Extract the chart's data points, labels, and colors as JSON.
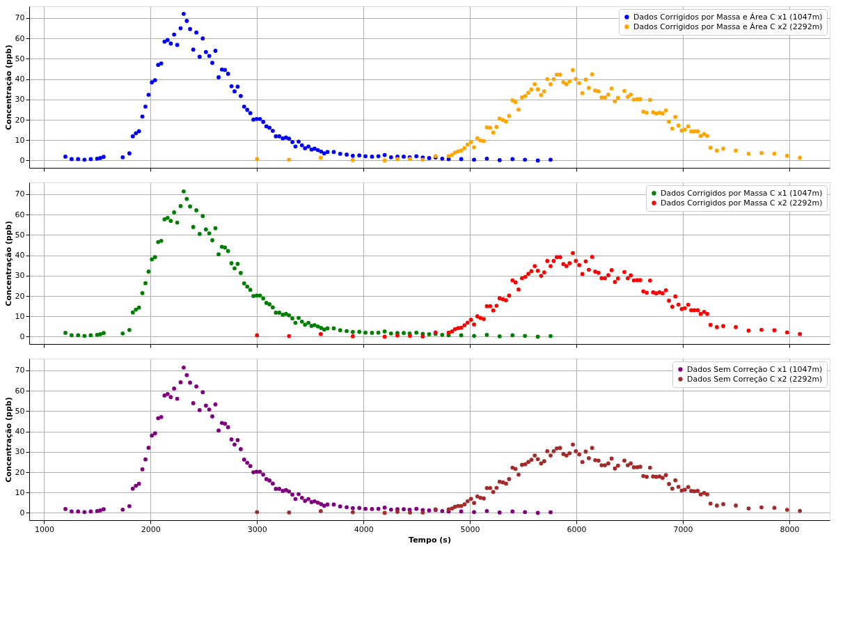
{
  "chart_data": [
    {
      "type": "scatter",
      "ylabel": "Concentração (ppb)",
      "xlim": [
        860,
        8380
      ],
      "ylim": [
        -3.6,
        75.8
      ],
      "xticks": [
        1000,
        2000,
        3000,
        4000,
        5000,
        6000,
        7000,
        8000
      ],
      "yticks": [
        0,
        10,
        20,
        30,
        40,
        50,
        60,
        70
      ],
      "tick_labels": "y",
      "grid": true,
      "legend": "top right",
      "marker": "circle",
      "series": [
        {
          "name": "Dados Corrigidos por Massa e Área C x1 (1047m)",
          "color": "#0000ff",
          "x": [
            1200,
            1258,
            1319,
            1379,
            1438,
            1498,
            1527,
            1559,
            1738,
            1801,
            1833,
            1862,
            1891,
            1923,
            1952,
            1981,
            2012,
            2042,
            2071,
            2100,
            2131,
            2160,
            2190,
            2221,
            2250,
            2282,
            2311,
            2340,
            2371,
            2401,
            2430,
            2461,
            2490,
            2520,
            2551,
            2580,
            2609,
            2639,
            2670,
            2699,
            2728,
            2760,
            2789,
            2818,
            2847,
            2879,
            2908,
            2937,
            2966,
            2996,
            3027,
            3058,
            3088,
            3117,
            3148,
            3177,
            3209,
            3242,
            3272,
            3301,
            3332,
            3361,
            3391,
            3422,
            3451,
            3483,
            3512,
            3541,
            3572,
            3602,
            3631,
            3662,
            3721,
            3781,
            3842,
            3900,
            3961,
            4019,
            4080,
            4140,
            4199,
            4259,
            4319,
            4378,
            4434,
            4497,
            4557,
            4617,
            4677,
            4740,
            4800,
            4918,
            5039,
            5159,
            5279,
            5400,
            5517,
            5638,
            5758
          ],
          "values": [
            1.9,
            0.7,
            0.7,
            0.4,
            0.7,
            0.9,
            1.2,
            1.8,
            1.6,
            3.5,
            11.9,
            13.4,
            14.4,
            21.6,
            26.5,
            32.3,
            38.4,
            39.5,
            47.0,
            47.7,
            58.4,
            59.2,
            57.5,
            61.9,
            56.8,
            65.0,
            72.1,
            68.6,
            64.6,
            54.5,
            62.9,
            51.0,
            60.0,
            53.3,
            51.4,
            48.0,
            53.9,
            40.9,
            44.7,
            44.5,
            42.6,
            36.5,
            34.0,
            36.3,
            31.7,
            26.5,
            24.9,
            23.3,
            20.1,
            20.4,
            20.4,
            19.0,
            16.8,
            16.1,
            14.6,
            11.9,
            11.9,
            10.9,
            11.3,
            10.7,
            9.1,
            6.9,
            9.3,
            7.5,
            6.0,
            6.9,
            5.4,
            5.8,
            5.1,
            4.4,
            3.5,
            4.2,
            4.2,
            3.3,
            2.9,
            2.3,
            2.5,
            2.1,
            1.9,
            2.1,
            2.7,
            1.6,
            1.9,
            1.9,
            1.6,
            2.1,
            1.5,
            1.2,
            1.5,
            0.9,
            0.7,
            0.7,
            0.4,
            0.9,
            0.2,
            0.7,
            0.4,
            0.0,
            0.4
          ]
        },
        {
          "name": "Dados Corrigidos por Massa e Área C x2 (2292m)",
          "color": "#ffa500",
          "x": [
            3000,
            3301,
            3599,
            3900,
            4199,
            4319,
            4437,
            4557,
            4677,
            4800,
            4832,
            4860,
            4889,
            4918,
            4949,
            4978,
            5010,
            5039,
            5070,
            5099,
            5130,
            5159,
            5190,
            5219,
            5250,
            5279,
            5310,
            5339,
            5368,
            5400,
            5428,
            5457,
            5489,
            5520,
            5549,
            5578,
            5609,
            5638,
            5669,
            5698,
            5727,
            5758,
            5787,
            5816,
            5847,
            5878,
            5907,
            5936,
            5967,
            5995,
            6027,
            6057,
            6088,
            6117,
            6148,
            6177,
            6208,
            6237,
            6268,
            6300,
            6331,
            6362,
            6391,
            6451,
            6483,
            6511,
            6540,
            6572,
            6600,
            6692,
            6629,
            6661,
            6721,
            6750,
            6781,
            6810,
            6841,
            6870,
            6901,
            6930,
            6959,
            6990,
            7019,
            7051,
            7079,
            7108,
            7140,
            7168,
            7200,
            7229,
            7260,
            7320,
            7380,
            7498,
            7618,
            7739,
            7860,
            7980,
            8100
          ],
          "values": [
            0.7,
            0.4,
            1.4,
            0.2,
            0.0,
            0.7,
            0.8,
            0.4,
            2.2,
            2.2,
            2.8,
            3.9,
            4.5,
            4.9,
            6.1,
            7.8,
            9.1,
            6.5,
            11.0,
            9.8,
            9.6,
            16.3,
            16.1,
            13.8,
            16.5,
            20.6,
            19.9,
            19.2,
            21.9,
            29.6,
            28.7,
            25.0,
            31.0,
            31.7,
            33.3,
            34.9,
            37.5,
            35.0,
            32.2,
            34.0,
            40.0,
            37.5,
            40.0,
            42.2,
            42.2,
            38.5,
            37.5,
            38.9,
            44.4,
            40.0,
            38.0,
            33.1,
            39.8,
            35.7,
            42.4,
            34.4,
            34.0,
            31.0,
            31.0,
            32.4,
            35.4,
            29.1,
            30.8,
            34.2,
            31.3,
            32.4,
            29.9,
            30.1,
            30.1,
            29.8,
            24.0,
            23.5,
            23.7,
            23.1,
            23.5,
            23.1,
            24.6,
            19.1,
            15.7,
            21.4,
            17.2,
            14.7,
            15.2,
            16.8,
            14.3,
            14.3,
            14.3,
            12.1,
            13.0,
            12.1,
            6.3,
            4.9,
            5.8,
            4.9,
            3.3,
            3.7,
            3.4,
            2.3,
            1.4
          ]
        }
      ]
    },
    {
      "type": "scatter",
      "ylabel": "Concentração (ppb)",
      "xlim": [
        860,
        8380
      ],
      "ylim": [
        -3.6,
        75.8
      ],
      "xticks": [
        1000,
        2000,
        3000,
        4000,
        5000,
        6000,
        7000,
        8000
      ],
      "yticks": [
        0,
        10,
        20,
        30,
        40,
        50,
        60,
        70
      ],
      "tick_labels": "y",
      "grid": true,
      "legend": "top right",
      "marker": "circle",
      "series": [
        {
          "name": "Dados Corrigidos por Massa C x1 (1047m)",
          "color": "#008000",
          "x": [
            1200,
            1258,
            1319,
            1379,
            1438,
            1498,
            1527,
            1559,
            1738,
            1801,
            1833,
            1862,
            1891,
            1923,
            1952,
            1981,
            2012,
            2042,
            2071,
            2100,
            2131,
            2160,
            2190,
            2221,
            2250,
            2282,
            2311,
            2340,
            2371,
            2401,
            2430,
            2461,
            2490,
            2520,
            2551,
            2580,
            2609,
            2639,
            2670,
            2699,
            2728,
            2760,
            2789,
            2818,
            2847,
            2879,
            2908,
            2937,
            2966,
            2996,
            3027,
            3058,
            3088,
            3117,
            3148,
            3177,
            3209,
            3242,
            3272,
            3301,
            3332,
            3361,
            3391,
            3422,
            3451,
            3483,
            3512,
            3541,
            3572,
            3602,
            3631,
            3662,
            3721,
            3781,
            3842,
            3900,
            3961,
            4019,
            4080,
            4140,
            4199,
            4259,
            4319,
            4378,
            4434,
            4497,
            4557,
            4617,
            4677,
            4740,
            4800,
            4918,
            5039,
            5159,
            5279,
            5400,
            5517,
            5638,
            5758
          ],
          "values": [
            1.9,
            0.7,
            0.7,
            0.4,
            0.7,
            0.9,
            1.2,
            1.8,
            1.6,
            3.3,
            11.9,
            13.3,
            14.3,
            21.4,
            26.3,
            32.0,
            38.0,
            39.1,
            46.5,
            47.1,
            57.7,
            58.4,
            56.9,
            61.1,
            56.1,
            64.2,
            71.4,
            67.7,
            64.0,
            53.9,
            62.1,
            50.5,
            59.3,
            52.7,
            50.8,
            47.4,
            53.3,
            40.5,
            44.2,
            43.8,
            42.1,
            36.1,
            33.6,
            35.8,
            31.3,
            26.2,
            24.6,
            23.0,
            20.0,
            20.2,
            20.2,
            18.8,
            16.6,
            15.9,
            14.4,
            11.8,
            11.8,
            10.8,
            11.2,
            10.5,
            9.0,
            6.8,
            9.2,
            7.4,
            5.9,
            6.8,
            5.3,
            5.7,
            5.0,
            4.3,
            3.5,
            4.1,
            4.1,
            3.2,
            2.8,
            2.3,
            2.4,
            2.0,
            1.9,
            2.0,
            2.6,
            1.6,
            1.8,
            1.8,
            1.6,
            2.0,
            1.4,
            1.2,
            1.4,
            0.9,
            0.7,
            0.7,
            0.4,
            0.9,
            0.2,
            0.7,
            0.4,
            0.0,
            0.3
          ]
        },
        {
          "name": "Dados Corrigidos por Massa C x2 (2292m)",
          "color": "#ff0000",
          "x": [
            3000,
            3301,
            3599,
            3900,
            4199,
            4319,
            4437,
            4557,
            4677,
            4800,
            4832,
            4860,
            4889,
            4918,
            4949,
            4978,
            5010,
            5039,
            5070,
            5099,
            5130,
            5159,
            5190,
            5219,
            5250,
            5279,
            5310,
            5339,
            5368,
            5400,
            5428,
            5457,
            5489,
            5520,
            5549,
            5578,
            5609,
            5638,
            5669,
            5698,
            5727,
            5758,
            5787,
            5816,
            5847,
            5878,
            5907,
            5936,
            5967,
            5995,
            6027,
            6057,
            6088,
            6117,
            6148,
            6177,
            6208,
            6237,
            6268,
            6300,
            6331,
            6362,
            6391,
            6451,
            6483,
            6511,
            6540,
            6572,
            6600,
            6692,
            6629,
            6661,
            6721,
            6750,
            6781,
            6810,
            6841,
            6870,
            6901,
            6930,
            6959,
            6990,
            7019,
            7051,
            7079,
            7108,
            7140,
            7168,
            7200,
            7229,
            7260,
            7320,
            7380,
            7498,
            7618,
            7739,
            7860,
            7980,
            8100
          ],
          "values": [
            0.7,
            0.3,
            1.3,
            0.2,
            0.0,
            0.6,
            0.4,
            0.1,
            2.1,
            2.0,
            2.6,
            3.7,
            4.2,
            4.4,
            5.6,
            6.9,
            8.3,
            6.0,
            10.0,
            9.2,
            8.7,
            15.0,
            15.0,
            12.9,
            15.2,
            18.9,
            18.4,
            17.9,
            20.2,
            27.7,
            26.7,
            23.2,
            28.7,
            29.4,
            30.9,
            32.2,
            34.7,
            32.4,
            29.9,
            31.6,
            37.2,
            34.7,
            37.2,
            39.1,
            39.1,
            35.7,
            34.7,
            36.1,
            41.1,
            37.2,
            35.2,
            30.8,
            37.0,
            32.9,
            39.2,
            32.0,
            31.4,
            28.7,
            28.7,
            30.2,
            32.7,
            26.9,
            28.6,
            31.8,
            28.7,
            30.1,
            27.7,
            27.8,
            27.8,
            27.6,
            22.3,
            21.6,
            21.8,
            21.3,
            21.8,
            21.3,
            22.8,
            17.7,
            14.7,
            19.8,
            15.8,
            13.6,
            14.0,
            15.7,
            13.0,
            13.0,
            13.0,
            11.2,
            12.2,
            11.2,
            5.8,
            4.7,
            5.2,
            4.7,
            3.0,
            3.4,
            3.2,
            2.1,
            1.3
          ]
        }
      ]
    },
    {
      "type": "scatter",
      "xlabel": "Tempo (s)",
      "ylabel": "Concentração (ppb)",
      "xlim": [
        860,
        8380
      ],
      "ylim": [
        -3.6,
        75.8
      ],
      "xticks": [
        1000,
        2000,
        3000,
        4000,
        5000,
        6000,
        7000,
        8000
      ],
      "yticks": [
        0,
        10,
        20,
        30,
        40,
        50,
        60,
        70
      ],
      "grid": true,
      "legend": "top right",
      "marker": "circle",
      "series": [
        {
          "name": "Dados Sem Correção C x1 (1047m)",
          "color": "#800080",
          "x": [
            1200,
            1258,
            1319,
            1379,
            1438,
            1498,
            1527,
            1559,
            1738,
            1801,
            1833,
            1862,
            1891,
            1923,
            1952,
            1981,
            2012,
            2042,
            2071,
            2100,
            2131,
            2160,
            2190,
            2221,
            2250,
            2282,
            2311,
            2340,
            2371,
            2401,
            2430,
            2461,
            2490,
            2520,
            2551,
            2580,
            2609,
            2639,
            2670,
            2699,
            2728,
            2760,
            2789,
            2818,
            2847,
            2879,
            2908,
            2937,
            2966,
            2996,
            3027,
            3058,
            3088,
            3117,
            3148,
            3177,
            3209,
            3242,
            3272,
            3301,
            3332,
            3361,
            3391,
            3422,
            3451,
            3483,
            3512,
            3541,
            3572,
            3602,
            3631,
            3662,
            3721,
            3781,
            3842,
            3900,
            3961,
            4019,
            4080,
            4140,
            4199,
            4259,
            4319,
            4378,
            4434,
            4497,
            4557,
            4617,
            4677,
            4740,
            4800,
            4918,
            5039,
            5159,
            5279,
            5400,
            5517,
            5638,
            5758
          ],
          "values": [
            1.9,
            0.7,
            0.7,
            0.4,
            0.7,
            0.9,
            1.2,
            1.8,
            1.6,
            3.3,
            11.9,
            13.3,
            14.3,
            21.4,
            26.3,
            32.0,
            38.0,
            39.1,
            46.5,
            47.1,
            57.7,
            58.4,
            56.9,
            61.1,
            56.1,
            64.2,
            71.4,
            67.7,
            64.0,
            53.9,
            62.1,
            50.5,
            59.3,
            52.7,
            50.8,
            47.4,
            53.3,
            40.5,
            44.2,
            43.8,
            42.1,
            36.1,
            33.6,
            35.8,
            31.3,
            26.2,
            24.6,
            23.0,
            20.0,
            20.2,
            20.2,
            18.8,
            16.6,
            15.9,
            14.4,
            11.8,
            11.8,
            10.8,
            11.2,
            10.5,
            9.0,
            6.8,
            9.2,
            7.4,
            5.9,
            6.8,
            5.3,
            5.7,
            5.0,
            4.3,
            3.5,
            4.1,
            4.1,
            3.2,
            2.8,
            2.3,
            2.4,
            2.0,
            1.9,
            2.0,
            2.6,
            1.6,
            1.8,
            1.8,
            1.6,
            2.0,
            1.4,
            1.2,
            1.4,
            0.9,
            0.7,
            0.7,
            0.4,
            0.9,
            0.2,
            0.7,
            0.4,
            0.0,
            0.3
          ]
        },
        {
          "name": "Dados Sem Correção C x2 (2292m)",
          "color": "#a52a2a",
          "x": [
            3000,
            3301,
            3599,
            3900,
            4199,
            4319,
            4437,
            4557,
            4677,
            4800,
            4832,
            4860,
            4889,
            4918,
            4949,
            4978,
            5010,
            5039,
            5070,
            5099,
            5130,
            5159,
            5190,
            5219,
            5250,
            5279,
            5310,
            5339,
            5368,
            5400,
            5428,
            5457,
            5489,
            5520,
            5549,
            5578,
            5609,
            5638,
            5669,
            5698,
            5727,
            5758,
            5787,
            5816,
            5847,
            5878,
            5907,
            5936,
            5967,
            5995,
            6027,
            6057,
            6088,
            6117,
            6148,
            6177,
            6208,
            6237,
            6268,
            6300,
            6331,
            6362,
            6391,
            6451,
            6483,
            6511,
            6540,
            6572,
            6600,
            6692,
            6629,
            6661,
            6721,
            6750,
            6781,
            6810,
            6841,
            6870,
            6901,
            6930,
            6959,
            6990,
            7019,
            7051,
            7079,
            7108,
            7140,
            7168,
            7200,
            7229,
            7260,
            7320,
            7380,
            7498,
            7618,
            7739,
            7860,
            7980,
            8100
          ],
          "values": [
            0.4,
            0.2,
            0.9,
            0.3,
            0.0,
            0.5,
            0.2,
            0.2,
            1.7,
            1.7,
            2.2,
            3.0,
            3.4,
            3.4,
            4.2,
            5.7,
            6.9,
            4.9,
            8.1,
            7.4,
            7.1,
            12.2,
            12.2,
            10.3,
            12.3,
            15.3,
            15.0,
            14.4,
            16.6,
            22.2,
            21.6,
            18.8,
            23.6,
            23.9,
            25.0,
            26.1,
            28.2,
            26.4,
            24.3,
            25.4,
            30.3,
            28.2,
            30.3,
            31.7,
            31.9,
            28.9,
            28.2,
            29.3,
            33.6,
            30.3,
            28.7,
            25.0,
            30.1,
            26.9,
            31.9,
            25.9,
            25.7,
            23.4,
            23.4,
            24.3,
            26.7,
            21.8,
            23.2,
            25.7,
            23.4,
            24.3,
            22.4,
            22.4,
            22.7,
            22.2,
            18.1,
            17.7,
            17.9,
            17.7,
            17.9,
            17.2,
            18.6,
            14.2,
            11.9,
            16.0,
            12.8,
            11.0,
            11.4,
            12.7,
            10.8,
            10.6,
            10.8,
            9.1,
            9.8,
            9.1,
            4.6,
            3.6,
            4.3,
            3.6,
            2.2,
            2.7,
            2.5,
            1.5,
            1.0
          ]
        }
      ]
    }
  ]
}
